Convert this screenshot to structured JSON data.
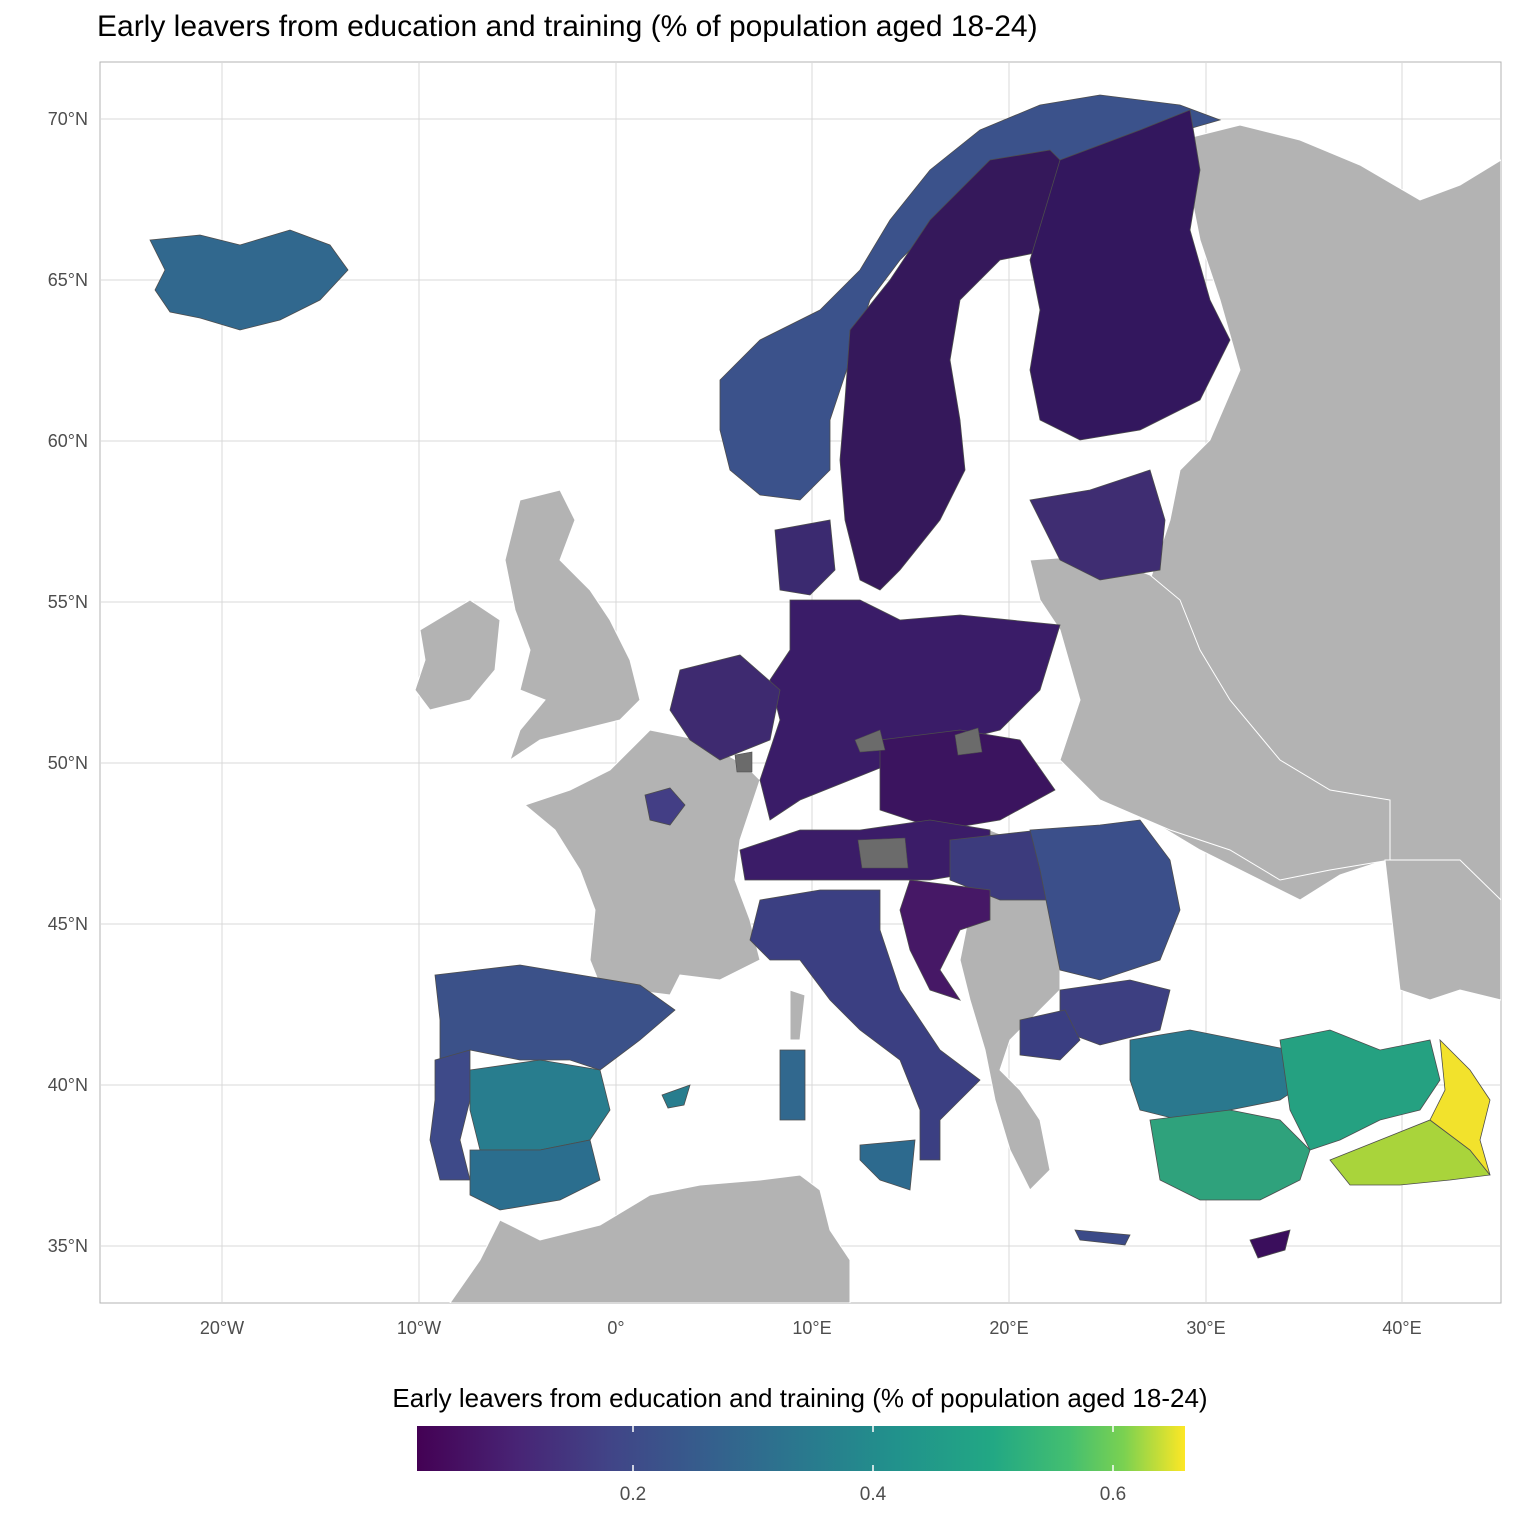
{
  "title": "Early leavers from education and training (% of population aged 18-24)",
  "axes": {
    "lat_labels": [
      "70°N",
      "65°N",
      "60°N",
      "55°N",
      "50°N",
      "45°N",
      "40°N",
      "35°N"
    ],
    "lon_labels": [
      "20°W",
      "10°W",
      "0°",
      "10°E",
      "20°E",
      "30°E",
      "40°E"
    ]
  },
  "legend": {
    "title": "Early leavers from education and training (% of population aged 18-24)",
    "ticks": [
      "0.2",
      "0.4",
      "0.6"
    ],
    "range": [
      0.01,
      0.65
    ],
    "palette": "viridis"
  },
  "colors": {
    "no_data_land": "#b3b3b3",
    "missing_region": "#6b6b6b",
    "low": "#440154",
    "high": "#fde725"
  }
}
